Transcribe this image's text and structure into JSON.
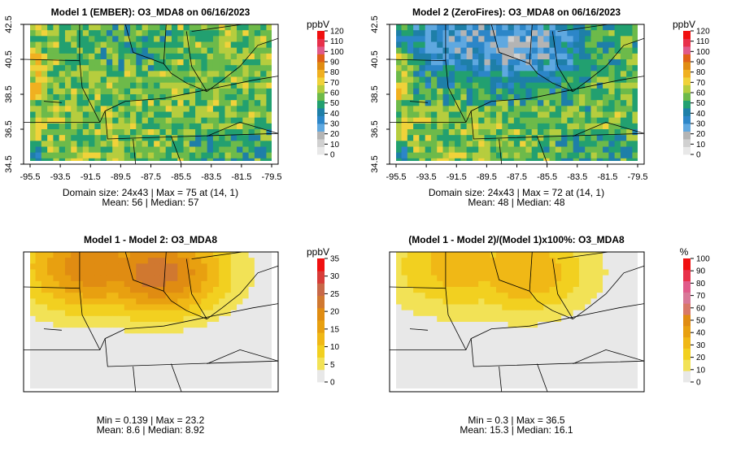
{
  "chart_data": [
    {
      "type": "heatmap",
      "title": "Model 1 (EMBER): O3_MDA8 on 06/16/2023",
      "xticks": [
        "-95.5",
        "-93.5",
        "-91.5",
        "-89.5",
        "-87.5",
        "-85.5",
        "-83.5",
        "-81.5",
        "-79.5"
      ],
      "yticks": [
        "34.5",
        "36.5",
        "38.5",
        "40.5",
        "42.5"
      ],
      "xlim": [
        -95.5,
        -79.5
      ],
      "ylim": [
        34.5,
        42.5
      ],
      "colorbar": {
        "unit": "ppbV",
        "ticks": [
          "0",
          "10",
          "20",
          "30",
          "40",
          "50",
          "60",
          "70",
          "80",
          "90",
          "100",
          "110",
          "120"
        ],
        "range": [
          0,
          120
        ]
      },
      "stats": [
        "Domain size: 24x43 | Max = 75 at (14, 1)",
        "Mean: 56 |  Median: 57"
      ],
      "grid_size": [
        24,
        43
      ],
      "max": 75,
      "mean": 56,
      "median": 57
    },
    {
      "type": "heatmap",
      "title": "Model 2 (ZeroFires): O3_MDA8 on 06/16/2023",
      "xticks": [
        "-95.5",
        "-93.5",
        "-91.5",
        "-89.5",
        "-87.5",
        "-85.5",
        "-83.5",
        "-81.5",
        "-79.5"
      ],
      "yticks": [
        "34.5",
        "36.5",
        "38.5",
        "40.5",
        "42.5"
      ],
      "xlim": [
        -95.5,
        -79.5
      ],
      "ylim": [
        34.5,
        42.5
      ],
      "colorbar": {
        "unit": "ppbV",
        "ticks": [
          "0",
          "10",
          "20",
          "30",
          "40",
          "50",
          "60",
          "70",
          "80",
          "90",
          "100",
          "110",
          "120"
        ],
        "range": [
          0,
          120
        ]
      },
      "stats": [
        "Domain size: 24x43 | Max = 72 at (14, 1)",
        "Mean: 48 |  Median: 48"
      ],
      "grid_size": [
        24,
        43
      ],
      "max": 72,
      "mean": 48,
      "median": 48
    },
    {
      "type": "heatmap",
      "title": "Model 1 - Model 2: O3_MDA8",
      "colorbar": {
        "unit": "ppbV",
        "ticks": [
          "0",
          "5",
          "10",
          "15",
          "20",
          "25",
          "30",
          "35"
        ],
        "range": [
          0,
          35
        ]
      },
      "stats": [
        "Min = 0.139 | Max = 23.2",
        "Mean: 8.6 |  Median: 8.92"
      ],
      "min": 0.139,
      "max": 23.2,
      "mean": 8.6,
      "median": 8.92
    },
    {
      "type": "heatmap",
      "title": "(Model 1 - Model 2)/(Model 1)x100%: O3_MDA8",
      "colorbar": {
        "unit": "%",
        "ticks": [
          "0",
          "10",
          "20",
          "30",
          "40",
          "50",
          "60",
          "70",
          "80",
          "90",
          "100"
        ],
        "range": [
          0,
          100
        ]
      },
      "stats": [
        "Min = 0.3 | Max = 36.5",
        "Mean: 15.3 |  Median: 16.1"
      ],
      "min": 0.3,
      "max": 36.5,
      "mean": 15.3,
      "median": 16.1
    }
  ],
  "colors": {
    "abs_scale": [
      "#e8e8e8",
      "#d0d0d0",
      "#b4b4b4",
      "#5fa8e0",
      "#2c86c8",
      "#1e7fa8",
      "#22a070",
      "#6dba4a",
      "#b6cd3e",
      "#f0d23a",
      "#f0b020",
      "#e08c12",
      "#e06018",
      "#e05a8a",
      "#e8304a",
      "#f01010"
    ],
    "diff_scale": [
      "#e8e8e8",
      "#f2e256",
      "#f2d020",
      "#f0b816",
      "#e8a010",
      "#e08c12",
      "#d07830",
      "#c86848",
      "#d83c38",
      "#f01010"
    ],
    "pct_scale": [
      "#e8e8e8",
      "#f2e256",
      "#f2d020",
      "#f0b816",
      "#e8a010",
      "#e08c12",
      "#d87868",
      "#d87898",
      "#e05a8a",
      "#e8304a",
      "#f01010"
    ]
  }
}
